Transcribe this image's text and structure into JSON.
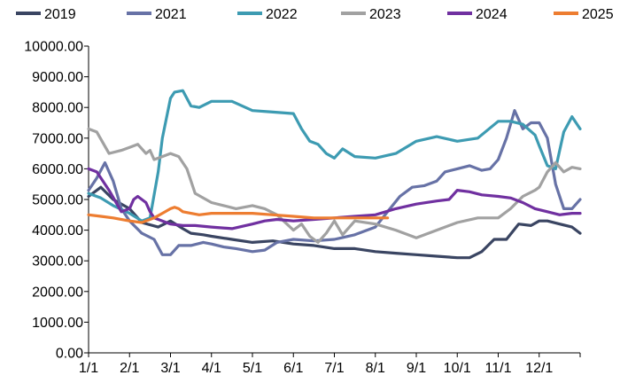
{
  "chart_data": {
    "type": "line",
    "title": "",
    "xlabel": "",
    "ylabel": "",
    "ylim": [
      0,
      10000
    ],
    "y_ticks": [
      "0.00",
      "1000.00",
      "2000.00",
      "3000.00",
      "4000.00",
      "5000.00",
      "6000.00",
      "7000.00",
      "8000.00",
      "9000.00",
      "10000.00"
    ],
    "x_ticks": [
      "1/1",
      "2/1",
      "3/1",
      "4/1",
      "5/1",
      "6/1",
      "7/1",
      "8/1",
      "9/1",
      "10/1",
      "11/1",
      "12/1"
    ],
    "x_range": [
      0,
      12
    ],
    "legend_position": "top",
    "series": [
      {
        "name": "2019",
        "color": "#3a4562",
        "x": [
          0,
          0.3,
          0.6,
          1.0,
          1.3,
          1.7,
          2.0,
          2.3,
          2.5,
          2.8,
          3.0,
          3.5,
          4.0,
          4.5,
          5.0,
          5.5,
          6.0,
          6.5,
          7.0,
          7.5,
          8.0,
          8.5,
          9.0,
          9.3,
          9.6,
          9.9,
          10.2,
          10.5,
          10.8,
          11.0,
          11.2,
          11.5,
          11.8,
          12.0
        ],
        "values": [
          5100,
          5400,
          5000,
          4700,
          4250,
          4100,
          4300,
          4050,
          3900,
          3850,
          3800,
          3700,
          3600,
          3650,
          3550,
          3500,
          3400,
          3400,
          3300,
          3250,
          3200,
          3150,
          3100,
          3100,
          3300,
          3700,
          3700,
          4200,
          4150,
          4300,
          4300,
          4200,
          4100,
          3900
        ]
      },
      {
        "name": "2021",
        "color": "#6772a6",
        "x": [
          0,
          0.2,
          0.4,
          0.6,
          0.8,
          1.0,
          1.3,
          1.6,
          1.8,
          2.0,
          2.2,
          2.5,
          2.8,
          3.0,
          3.3,
          3.6,
          4.0,
          4.3,
          4.6,
          5.0,
          5.5,
          6.0,
          6.5,
          7.0,
          7.3,
          7.6,
          7.9,
          8.2,
          8.5,
          8.7,
          9.0,
          9.3,
          9.6,
          9.8,
          10.0,
          10.2,
          10.4,
          10.6,
          10.8,
          11.0,
          11.2,
          11.4,
          11.6,
          11.8,
          12.0
        ],
        "values": [
          5300,
          5700,
          6200,
          5600,
          4700,
          4300,
          3900,
          3700,
          3200,
          3200,
          3500,
          3500,
          3600,
          3550,
          3450,
          3400,
          3300,
          3350,
          3600,
          3700,
          3650,
          3700,
          3850,
          4100,
          4600,
          5100,
          5400,
          5450,
          5600,
          5900,
          6000,
          6100,
          5950,
          6000,
          6300,
          7000,
          7900,
          7300,
          7500,
          7500,
          7000,
          5500,
          4700,
          4700,
          5000
        ]
      },
      {
        "name": "2022",
        "color": "#3d9bb2",
        "x": [
          0,
          0.3,
          0.6,
          1.0,
          1.3,
          1.5,
          1.7,
          1.8,
          2.0,
          2.1,
          2.3,
          2.5,
          2.7,
          3.0,
          3.5,
          4.0,
          4.5,
          5.0,
          5.2,
          5.4,
          5.6,
          5.8,
          6.0,
          6.2,
          6.5,
          7.0,
          7.5,
          8.0,
          8.5,
          9.0,
          9.5,
          10.0,
          10.3,
          10.6,
          10.9,
          11.0,
          11.2,
          11.4,
          11.6,
          11.8,
          12.0
        ],
        "values": [
          5200,
          5050,
          4800,
          4550,
          4300,
          4400,
          5900,
          7000,
          8300,
          8500,
          8550,
          8050,
          8000,
          8200,
          8200,
          7900,
          7850,
          7800,
          7300,
          6900,
          6800,
          6500,
          6350,
          6650,
          6400,
          6350,
          6500,
          6900,
          7050,
          6900,
          7000,
          7550,
          7550,
          7450,
          7100,
          6750,
          6100,
          6000,
          7200,
          7700,
          7300
        ]
      },
      {
        "name": "2023",
        "color": "#a1a1a1",
        "x": [
          0,
          0.2,
          0.5,
          0.8,
          1.0,
          1.2,
          1.4,
          1.5,
          1.6,
          1.8,
          2.0,
          2.2,
          2.4,
          2.6,
          3.0,
          3.3,
          3.6,
          4.0,
          4.3,
          4.6,
          5.0,
          5.2,
          5.4,
          5.6,
          5.8,
          6.0,
          6.2,
          6.5,
          7.0,
          7.5,
          8.0,
          8.5,
          9.0,
          9.5,
          10.0,
          10.3,
          10.6,
          10.9,
          11.0,
          11.2,
          11.4,
          11.6,
          11.8,
          12.0
        ],
        "values": [
          7300,
          7200,
          6500,
          6600,
          6700,
          6800,
          6500,
          6600,
          6300,
          6400,
          6500,
          6400,
          6000,
          5200,
          4900,
          4800,
          4700,
          4800,
          4700,
          4500,
          4000,
          4200,
          3800,
          3600,
          3900,
          4300,
          3850,
          4300,
          4200,
          4000,
          3750,
          4000,
          4250,
          4400,
          4400,
          4700,
          5100,
          5300,
          5400,
          5900,
          6200,
          5900,
          6050,
          6000
        ]
      },
      {
        "name": "2024",
        "color": "#7030a0",
        "x": [
          0,
          0.2,
          0.5,
          0.8,
          1.0,
          1.1,
          1.2,
          1.4,
          1.5,
          1.6,
          1.8,
          2.0,
          2.3,
          2.6,
          3.0,
          3.5,
          4.0,
          4.3,
          4.6,
          5.0,
          5.5,
          6.0,
          6.5,
          7.0,
          7.5,
          8.0,
          8.5,
          8.8,
          9.0,
          9.3,
          9.6,
          10.0,
          10.3,
          10.6,
          10.9,
          11.2,
          11.5,
          11.8,
          12.0
        ],
        "values": [
          6000,
          5900,
          5300,
          4600,
          4700,
          5000,
          5100,
          4900,
          4600,
          4400,
          4300,
          4200,
          4150,
          4150,
          4100,
          4050,
          4200,
          4300,
          4350,
          4300,
          4350,
          4400,
          4450,
          4500,
          4700,
          4850,
          4950,
          5000,
          5300,
          5250,
          5150,
          5100,
          5050,
          4900,
          4700,
          4600,
          4500,
          4550,
          4550
        ]
      },
      {
        "name": "2025",
        "color": "#ed7d31",
        "x": [
          0,
          0.3,
          0.6,
          1.0,
          1.3,
          1.6,
          1.8,
          2.0,
          2.1,
          2.2,
          2.3,
          2.5,
          2.7,
          3.0,
          3.5,
          4.0,
          4.5,
          5.0,
          5.5,
          6.0,
          6.5,
          7.0,
          7.3
        ],
        "values": [
          4500,
          4450,
          4400,
          4300,
          4250,
          4400,
          4550,
          4700,
          4750,
          4700,
          4600,
          4550,
          4500,
          4550,
          4550,
          4550,
          4500,
          4450,
          4400,
          4400,
          4400,
          4400,
          4400
        ]
      }
    ]
  }
}
